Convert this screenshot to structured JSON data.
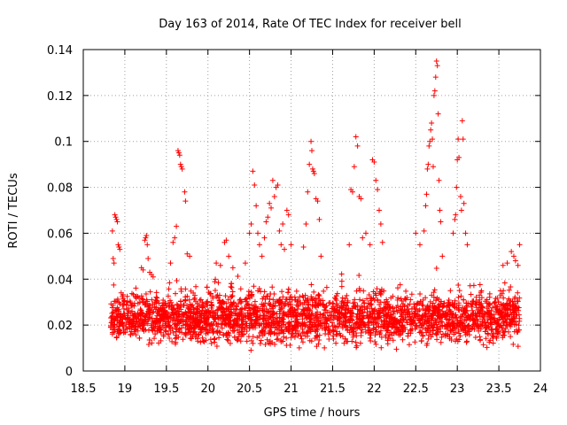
{
  "chart_data": {
    "type": "scatter",
    "title": "Day 163 of 2014, Rate Of TEC Index for receiver bell",
    "xlabel": "GPS time / hours",
    "ylabel": "ROTI / TECUs",
    "xlim": [
      18.5,
      24
    ],
    "ylim": [
      0,
      0.14
    ],
    "xticks": [
      "18.5",
      "19",
      "19.5",
      "20",
      "20.5",
      "21",
      "21.5",
      "22",
      "22.5",
      "23",
      "23.5",
      "24"
    ],
    "yticks": [
      "0",
      "0.02",
      "0.04",
      "0.06",
      "0.08",
      "0.1",
      "0.12",
      "0.14"
    ],
    "grid": true,
    "marker": "+",
    "color": "#ff0000",
    "x_range_of_data": [
      18.83,
      23.75
    ],
    "baseline_band": [
      0.008,
      0.038
    ],
    "series": [
      {
        "name": "ROTI",
        "points": [
          [
            18.85,
            0.061
          ],
          [
            18.86,
            0.049
          ],
          [
            18.87,
            0.047
          ],
          [
            18.88,
            0.068
          ],
          [
            18.89,
            0.067
          ],
          [
            18.9,
            0.066
          ],
          [
            18.91,
            0.065
          ],
          [
            18.92,
            0.055
          ],
          [
            18.93,
            0.054
          ],
          [
            18.94,
            0.053
          ],
          [
            19.2,
            0.045
          ],
          [
            19.22,
            0.044
          ],
          [
            19.24,
            0.057
          ],
          [
            19.25,
            0.058
          ],
          [
            19.26,
            0.059
          ],
          [
            19.27,
            0.055
          ],
          [
            19.28,
            0.049
          ],
          [
            19.3,
            0.043
          ],
          [
            19.32,
            0.042
          ],
          [
            19.34,
            0.041
          ],
          [
            19.55,
            0.047
          ],
          [
            19.58,
            0.056
          ],
          [
            19.6,
            0.058
          ],
          [
            19.62,
            0.063
          ],
          [
            19.64,
            0.096
          ],
          [
            19.65,
            0.095
          ],
          [
            19.66,
            0.094
          ],
          [
            19.67,
            0.09
          ],
          [
            19.68,
            0.089
          ],
          [
            19.69,
            0.088
          ],
          [
            19.72,
            0.078
          ],
          [
            19.73,
            0.074
          ],
          [
            19.75,
            0.051
          ],
          [
            19.78,
            0.05
          ],
          [
            20.1,
            0.047
          ],
          [
            20.15,
            0.046
          ],
          [
            20.2,
            0.056
          ],
          [
            20.22,
            0.057
          ],
          [
            20.25,
            0.05
          ],
          [
            20.3,
            0.045
          ],
          [
            20.45,
            0.047
          ],
          [
            20.5,
            0.06
          ],
          [
            20.52,
            0.064
          ],
          [
            20.54,
            0.087
          ],
          [
            20.56,
            0.081
          ],
          [
            20.58,
            0.072
          ],
          [
            20.6,
            0.06
          ],
          [
            20.62,
            0.055
          ],
          [
            20.65,
            0.05
          ],
          [
            20.68,
            0.058
          ],
          [
            20.7,
            0.065
          ],
          [
            20.72,
            0.067
          ],
          [
            20.74,
            0.073
          ],
          [
            20.76,
            0.071
          ],
          [
            20.78,
            0.083
          ],
          [
            20.8,
            0.076
          ],
          [
            20.82,
            0.08
          ],
          [
            20.84,
            0.081
          ],
          [
            20.86,
            0.061
          ],
          [
            20.88,
            0.055
          ],
          [
            20.9,
            0.064
          ],
          [
            20.92,
            0.053
          ],
          [
            20.95,
            0.07
          ],
          [
            20.97,
            0.068
          ],
          [
            21.0,
            0.055
          ],
          [
            21.15,
            0.054
          ],
          [
            21.18,
            0.064
          ],
          [
            21.2,
            0.078
          ],
          [
            21.22,
            0.09
          ],
          [
            21.24,
            0.1
          ],
          [
            21.25,
            0.096
          ],
          [
            21.26,
            0.088
          ],
          [
            21.27,
            0.087
          ],
          [
            21.28,
            0.086
          ],
          [
            21.3,
            0.075
          ],
          [
            21.32,
            0.074
          ],
          [
            21.34,
            0.066
          ],
          [
            21.36,
            0.05
          ],
          [
            21.7,
            0.055
          ],
          [
            21.72,
            0.079
          ],
          [
            21.74,
            0.078
          ],
          [
            21.76,
            0.089
          ],
          [
            21.78,
            0.102
          ],
          [
            21.8,
            0.098
          ],
          [
            21.82,
            0.076
          ],
          [
            21.84,
            0.075
          ],
          [
            21.86,
            0.058
          ],
          [
            21.9,
            0.06
          ],
          [
            21.95,
            0.055
          ],
          [
            21.98,
            0.092
          ],
          [
            22.0,
            0.091
          ],
          [
            22.02,
            0.083
          ],
          [
            22.04,
            0.079
          ],
          [
            22.06,
            0.07
          ],
          [
            22.08,
            0.064
          ],
          [
            22.1,
            0.056
          ],
          [
            22.5,
            0.06
          ],
          [
            22.55,
            0.055
          ],
          [
            22.6,
            0.061
          ],
          [
            22.62,
            0.072
          ],
          [
            22.63,
            0.077
          ],
          [
            22.64,
            0.088
          ],
          [
            22.65,
            0.09
          ],
          [
            22.66,
            0.098
          ],
          [
            22.67,
            0.1
          ],
          [
            22.68,
            0.105
          ],
          [
            22.69,
            0.108
          ],
          [
            22.7,
            0.101
          ],
          [
            22.71,
            0.089
          ],
          [
            22.72,
            0.12
          ],
          [
            22.73,
            0.122
          ],
          [
            22.74,
            0.128
          ],
          [
            22.75,
            0.135
          ],
          [
            22.76,
            0.133
          ],
          [
            22.77,
            0.112
          ],
          [
            22.78,
            0.083
          ],
          [
            22.79,
            0.07
          ],
          [
            22.8,
            0.065
          ],
          [
            22.82,
            0.05
          ],
          [
            22.95,
            0.06
          ],
          [
            22.97,
            0.066
          ],
          [
            22.98,
            0.068
          ],
          [
            22.99,
            0.08
          ],
          [
            23.0,
            0.092
          ],
          [
            23.01,
            0.101
          ],
          [
            23.02,
            0.093
          ],
          [
            23.04,
            0.076
          ],
          [
            23.05,
            0.07
          ],
          [
            23.06,
            0.109
          ],
          [
            23.07,
            0.101
          ],
          [
            23.08,
            0.073
          ],
          [
            23.1,
            0.06
          ],
          [
            23.12,
            0.055
          ],
          [
            23.55,
            0.046
          ],
          [
            23.6,
            0.047
          ],
          [
            23.65,
            0.052
          ],
          [
            23.68,
            0.05
          ],
          [
            23.7,
            0.048
          ],
          [
            23.73,
            0.046
          ],
          [
            23.75,
            0.055
          ]
        ]
      }
    ]
  }
}
